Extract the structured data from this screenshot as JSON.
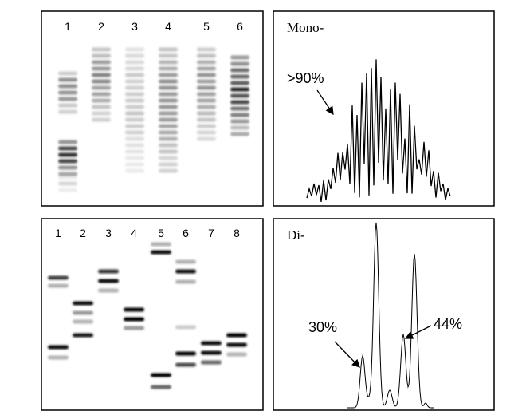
{
  "panels": [
    {
      "lane_labels": [
        "1",
        "2",
        "3",
        "4",
        "5",
        "6"
      ]
    },
    {
      "label": "Mono-",
      "annotation": ">90%"
    },
    {
      "lane_labels": [
        "1",
        "2",
        "3",
        "4",
        "5",
        "6",
        "7",
        "8"
      ]
    },
    {
      "label": "Di-",
      "annotations": [
        "30%",
        "44%"
      ]
    }
  ]
}
